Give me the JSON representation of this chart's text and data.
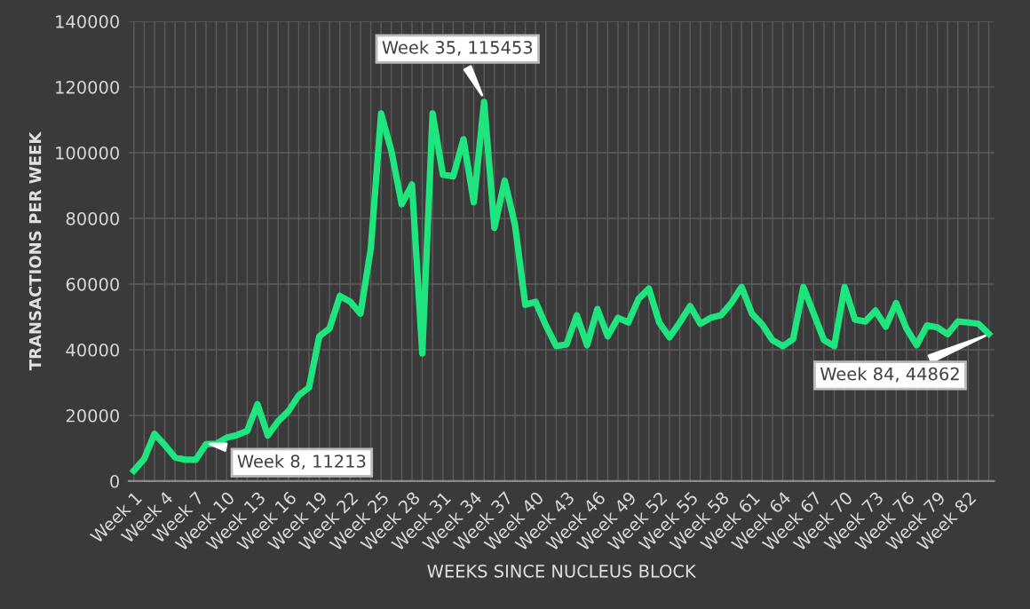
{
  "chart_data": {
    "type": "line",
    "xlabel": "WEEKS SINCE NUCLEUS BLOCK",
    "ylabel": "TRANSACTIONS PER WEEK",
    "categories": [
      "Week 1",
      null,
      null,
      "Week 4",
      null,
      null,
      "Week 7",
      null,
      null,
      "Week 10",
      null,
      null,
      "Week 13",
      null,
      null,
      "Week 16",
      null,
      null,
      "Week 19",
      null,
      null,
      "Week 22",
      null,
      null,
      "Week 25",
      null,
      null,
      "Week 28",
      null,
      null,
      "Week 31",
      null,
      null,
      "Week 34",
      null,
      null,
      "Week 37",
      null,
      null,
      "Week 40",
      null,
      null,
      "Week 43",
      null,
      null,
      "Week 46",
      null,
      null,
      "Week 49",
      null,
      null,
      "Week 52",
      null,
      null,
      "Week 55",
      null,
      null,
      "Week 58",
      null,
      null,
      "Week 61",
      null,
      null,
      "Week 64",
      null,
      null,
      "Week 67",
      null,
      null,
      "Week 70",
      null,
      null,
      "Week 73",
      null,
      null,
      "Week 76",
      null,
      null,
      "Week 79",
      null,
      null,
      "Week 82",
      null,
      null
    ],
    "series": [
      {
        "color": "#1fe57f",
        "values": [
          3200,
          6800,
          14400,
          11000,
          7200,
          6500,
          6500,
          11213,
          11400,
          13200,
          14000,
          15300,
          23400,
          13900,
          18200,
          21300,
          26100,
          28500,
          44100,
          46500,
          56400,
          54600,
          51000,
          70800,
          111900,
          100500,
          84300,
          90300,
          38900,
          111900,
          93300,
          92800,
          104100,
          84900,
          115453,
          77100,
          91500,
          78000,
          53700,
          54600,
          47400,
          41100,
          41600,
          50500,
          41400,
          52400,
          44100,
          49700,
          48300,
          55500,
          58600,
          48300,
          43800,
          48300,
          53300,
          47900,
          49700,
          50500,
          54200,
          59100,
          51000,
          47700,
          42900,
          41100,
          43200,
          59100,
          51000,
          42900,
          41100,
          59100,
          49200,
          48600,
          51900,
          47000,
          54200,
          46500,
          41400,
          47400,
          46800,
          44700,
          48600,
          48300,
          47900,
          44862
        ]
      }
    ],
    "ylim": [
      0,
      140000
    ],
    "yticks": [
      0,
      20000,
      40000,
      60000,
      80000,
      100000,
      120000,
      140000
    ],
    "grid": true,
    "marker": "none",
    "line_style": "solid",
    "annotations": [
      "Week 8, 11213",
      "Week 35, 115453",
      "Week 84, 44862"
    ]
  }
}
